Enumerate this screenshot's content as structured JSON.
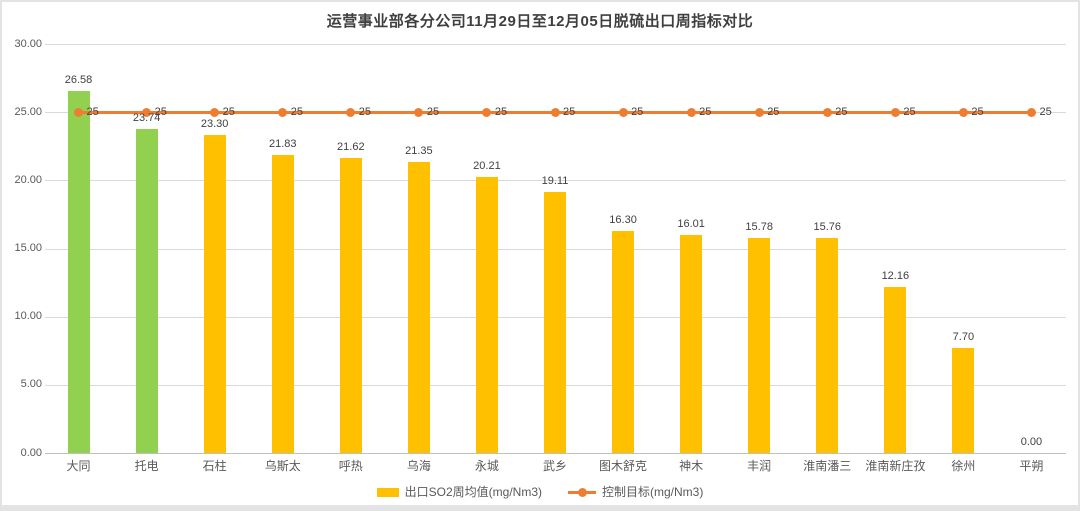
{
  "frame": {
    "background_color": "#e3e3e3",
    "card_color": "#ffffff"
  },
  "chart_data": {
    "type": "bar",
    "title": "运营事业部各分公司11月29日至12月05日脱硫出口周指标对比",
    "categories": [
      "大同",
      "托电",
      "石柱",
      "乌斯太",
      "呼热",
      "乌海",
      "永城",
      "武乡",
      "图木舒克",
      "神木",
      "丰润",
      "淮南潘三",
      "淮南新庄孜",
      "徐州",
      "平朔"
    ],
    "series": [
      {
        "name": "出口SO2周均值(mg/Nm3)",
        "type": "bar",
        "values": [
          26.58,
          23.74,
          23.3,
          21.83,
          21.62,
          21.35,
          20.21,
          19.11,
          16.3,
          16.01,
          15.78,
          15.76,
          12.16,
          7.7,
          0.0
        ],
        "value_labels": [
          "26.58",
          "23.74",
          "23.30",
          "21.83",
          "21.62",
          "21.35",
          "20.21",
          "19.11",
          "16.30",
          "16.01",
          "15.78",
          "15.76",
          "12.16",
          "7.70",
          "0.00"
        ],
        "bar_colors": [
          "#92d050",
          "#92d050",
          "#ffc000",
          "#ffc000",
          "#ffc000",
          "#ffc000",
          "#ffc000",
          "#ffc000",
          "#ffc000",
          "#ffc000",
          "#ffc000",
          "#ffc000",
          "#ffc000",
          "#ffc000",
          "#ffc000"
        ]
      },
      {
        "name": "控制目标(mg/Nm3)",
        "type": "line",
        "values": [
          25,
          25,
          25,
          25,
          25,
          25,
          25,
          25,
          25,
          25,
          25,
          25,
          25,
          25,
          25
        ],
        "point_labels": [
          "25",
          "25",
          "25",
          "25",
          "25",
          "25",
          "25",
          "25",
          "25",
          "25",
          "25",
          "25",
          "25",
          "25",
          "25"
        ],
        "color": "#ed7d31",
        "marker": "circle"
      }
    ],
    "ylim": [
      0,
      30
    ],
    "ytick_step": 5,
    "ytick_labels": [
      "0.00",
      "5.00",
      "10.00",
      "15.00",
      "20.00",
      "25.00",
      "30.00"
    ],
    "grid": true,
    "legend_position": "bottom"
  },
  "colors": {
    "bar_highlight": "#92d050",
    "bar_default": "#ffc000",
    "target_line": "#ed7d31",
    "gridline": "#d9d9d9",
    "axis_line": "#bfbfbf",
    "title_text": "#3f3f3f",
    "tick_text": "#595959",
    "data_label_text": "#404040"
  }
}
